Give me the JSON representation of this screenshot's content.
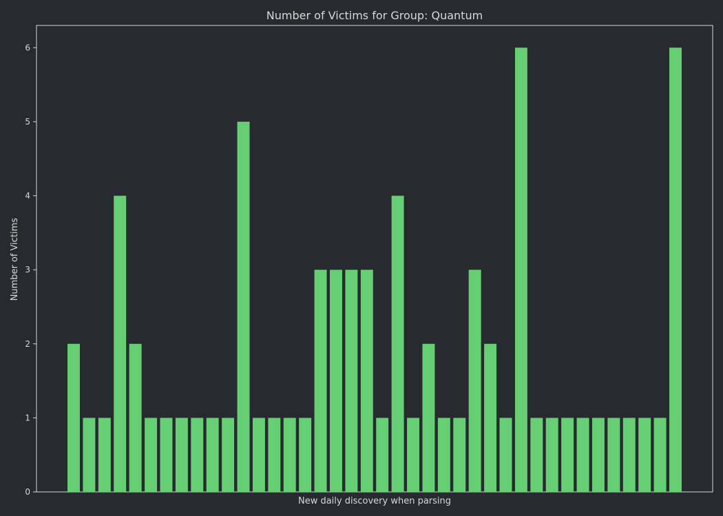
{
  "chart_data": {
    "type": "bar",
    "title": "Number of Victims for Group: Quantum",
    "xlabel": "New daily discovery when parsing",
    "ylabel": "Number of Victims",
    "values": [
      2,
      1,
      1,
      4,
      2,
      1,
      1,
      1,
      1,
      1,
      1,
      5,
      1,
      1,
      1,
      1,
      3,
      3,
      3,
      3,
      1,
      4,
      1,
      2,
      1,
      1,
      3,
      2,
      1,
      6,
      1,
      1,
      1,
      1,
      1,
      1,
      1,
      1,
      1,
      6
    ],
    "ylim": [
      0,
      6.3
    ],
    "yticks": [
      0,
      1,
      2,
      3,
      4,
      5,
      6
    ],
    "grid": false,
    "legend": "none",
    "colors": {
      "background": "#272b30",
      "bar": "#66cf74",
      "axis": "#d8d8d8",
      "text": "#d8d8d8"
    }
  }
}
